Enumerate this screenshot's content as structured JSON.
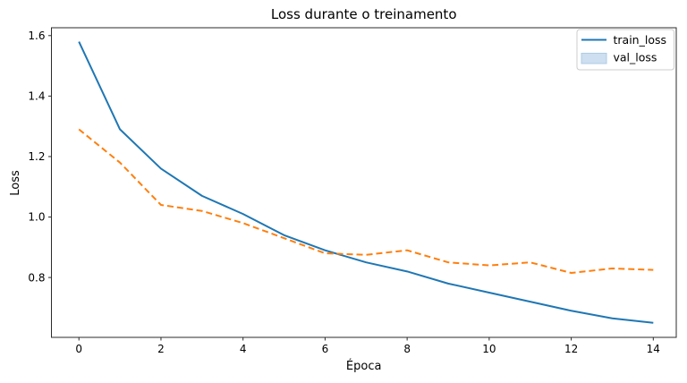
{
  "chart_data": {
    "type": "line",
    "title": "Loss durante o treinamento",
    "xlabel": "Época",
    "ylabel": "Loss",
    "x": [
      0,
      1,
      2,
      3,
      4,
      5,
      6,
      7,
      8,
      9,
      10,
      11,
      12,
      13,
      14
    ],
    "series": [
      {
        "name": "train_loss",
        "color": "#1f77b4",
        "style": "solid",
        "values": [
          1.58,
          1.29,
          1.16,
          1.07,
          1.01,
          0.94,
          0.89,
          0.85,
          0.82,
          0.78,
          0.75,
          0.72,
          0.69,
          0.665,
          0.65
        ]
      },
      {
        "name": "val_loss",
        "color": "#ff7f0e",
        "style": "dashed",
        "values": [
          1.29,
          1.18,
          1.04,
          1.02,
          0.98,
          0.93,
          0.88,
          0.875,
          0.89,
          0.85,
          0.84,
          0.85,
          0.815,
          0.83,
          0.825
        ]
      }
    ],
    "xlim": [
      -0.67,
      14.56
    ],
    "ylim": [
      0.602,
      1.626
    ],
    "xticks": [
      "0",
      "2",
      "4",
      "6",
      "8",
      "10",
      "12",
      "14"
    ],
    "yticks": [
      "0.8",
      "1.0",
      "1.2",
      "1.4",
      "1.6"
    ],
    "grid": false,
    "legend": {
      "position": "upper right",
      "entries": [
        {
          "label": "train_loss",
          "swatch": "line",
          "color": "#1f77b4"
        },
        {
          "label": "val_loss",
          "swatch": "patch",
          "fill": "#cddff0",
          "border": "#aecbe5"
        }
      ]
    }
  }
}
